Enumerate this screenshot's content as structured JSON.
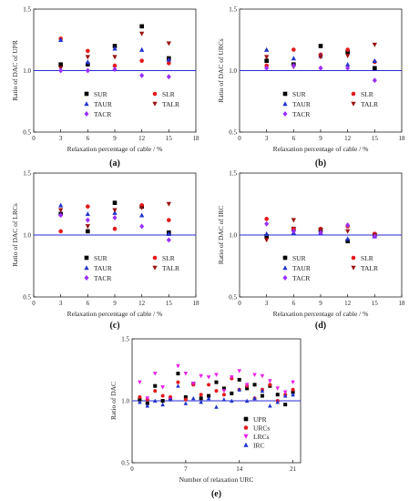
{
  "chart_data": [
    {
      "type": "scatter",
      "panel": "(a)",
      "xlabel": "Relaxation percentage of cable / %",
      "ylabel": "Ratio of DAC of UPR",
      "xlim": [
        0,
        18
      ],
      "ylim": [
        0.5,
        1.5
      ],
      "xticks": [
        0,
        3,
        6,
        9,
        12,
        15,
        18
      ],
      "yticks": [
        0.5,
        1.0,
        1.5
      ],
      "reference_line": 1.0,
      "legend_position": "bottom-center",
      "x": [
        3,
        6,
        9,
        12,
        15
      ],
      "series": [
        {
          "name": "SUR",
          "color": "#000000",
          "marker": "square",
          "values": [
            1.05,
            1.05,
            1.2,
            1.36,
            1.1
          ]
        },
        {
          "name": "SLR",
          "color": "#e41a1c",
          "marker": "circle",
          "values": [
            1.26,
            1.16,
            1.04,
            1.08,
            1.06
          ]
        },
        {
          "name": "TAUR",
          "color": "#2233cc",
          "marker": "triangle",
          "values": [
            1.25,
            1.07,
            1.18,
            1.17,
            1.09
          ]
        },
        {
          "name": "TALR",
          "color": "#991111",
          "marker": "invtri",
          "values": [
            1.02,
            1.11,
            1.11,
            1.3,
            1.22
          ]
        },
        {
          "name": "TACR",
          "color": "#9b30ff",
          "marker": "diamond",
          "values": [
            1.0,
            1.0,
            1.01,
            0.96,
            0.95
          ]
        }
      ]
    },
    {
      "type": "scatter",
      "panel": "(b)",
      "xlabel": "Relaxation percentage of cable / %",
      "ylabel": "Ratio of DAC of URCs",
      "xlim": [
        0,
        18
      ],
      "ylim": [
        0.5,
        1.5
      ],
      "xticks": [
        0,
        3,
        6,
        9,
        12,
        15,
        18
      ],
      "yticks": [
        0.5,
        1.0,
        1.5
      ],
      "reference_line": 1.0,
      "legend_position": "bottom-center",
      "x": [
        3,
        6,
        9,
        12,
        15
      ],
      "series": [
        {
          "name": "SUR",
          "color": "#000000",
          "marker": "square",
          "values": [
            1.08,
            1.05,
            1.2,
            1.15,
            1.02
          ]
        },
        {
          "name": "SLR",
          "color": "#e41a1c",
          "marker": "circle",
          "values": [
            1.04,
            1.17,
            1.13,
            1.17,
            1.07
          ]
        },
        {
          "name": "TAUR",
          "color": "#2233cc",
          "marker": "triangle",
          "values": [
            1.17,
            1.1,
            1.12,
            1.05,
            1.08
          ]
        },
        {
          "name": "TALR",
          "color": "#991111",
          "marker": "invtri",
          "values": [
            1.11,
            1.03,
            1.11,
            1.12,
            1.21
          ]
        },
        {
          "name": "TACR",
          "color": "#9b30ff",
          "marker": "diamond",
          "values": [
            1.02,
            1.04,
            1.02,
            1.02,
            0.92
          ]
        }
      ]
    },
    {
      "type": "scatter",
      "panel": "(c)",
      "xlabel": "Relaxation percentage of cable / %",
      "ylabel": "Ratio of DAC of LRCs",
      "xlim": [
        0,
        18
      ],
      "ylim": [
        0.5,
        1.5
      ],
      "xticks": [
        0,
        3,
        6,
        9,
        12,
        15,
        18
      ],
      "yticks": [
        0.5,
        1.0,
        1.5
      ],
      "reference_line": 1.0,
      "legend_position": "bottom-center",
      "x": [
        3,
        6,
        9,
        12,
        15
      ],
      "series": [
        {
          "name": "SUR",
          "color": "#000000",
          "marker": "square",
          "values": [
            1.17,
            1.03,
            1.26,
            1.23,
            1.02
          ]
        },
        {
          "name": "SLR",
          "color": "#e41a1c",
          "marker": "circle",
          "values": [
            1.03,
            1.23,
            1.05,
            1.24,
            1.12
          ]
        },
        {
          "name": "TAUR",
          "color": "#2233cc",
          "marker": "triangle",
          "values": [
            1.24,
            1.17,
            1.18,
            1.16,
            1.01
          ]
        },
        {
          "name": "TALR",
          "color": "#991111",
          "marker": "invtri",
          "values": [
            1.2,
            1.07,
            1.2,
            1.22,
            1.25
          ]
        },
        {
          "name": "TACR",
          "color": "#9b30ff",
          "marker": "diamond",
          "values": [
            1.16,
            1.12,
            1.14,
            1.07,
            0.96
          ]
        }
      ]
    },
    {
      "type": "scatter",
      "panel": "(d)",
      "xlabel": "Relaxation percentage of cable / %",
      "ylabel": "Ratio of DAC of IRC",
      "xlim": [
        0,
        18
      ],
      "ylim": [
        0.5,
        1.5
      ],
      "xticks": [
        0,
        3,
        6,
        9,
        12,
        15,
        18
      ],
      "yticks": [
        0.5,
        1.0,
        1.5
      ],
      "reference_line": 1.0,
      "legend_position": "bottom-center",
      "x": [
        3,
        6,
        9,
        12,
        15
      ],
      "series": [
        {
          "name": "SUR",
          "color": "#000000",
          "marker": "square",
          "values": [
            0.99,
            1.05,
            1.04,
            0.95,
            1.0
          ]
        },
        {
          "name": "SLR",
          "color": "#e41a1c",
          "marker": "circle",
          "values": [
            1.13,
            1.05,
            1.05,
            1.07,
            1.01
          ]
        },
        {
          "name": "TAUR",
          "color": "#2233cc",
          "marker": "triangle",
          "values": [
            1.01,
            1.02,
            1.02,
            0.97,
            0.99
          ]
        },
        {
          "name": "TALR",
          "color": "#991111",
          "marker": "invtri",
          "values": [
            0.96,
            1.12,
            1.04,
            1.03,
            1.0
          ]
        },
        {
          "name": "TACR",
          "color": "#9b30ff",
          "marker": "diamond",
          "values": [
            1.09,
            1.03,
            1.02,
            1.08,
            0.99
          ]
        }
      ]
    },
    {
      "type": "scatter",
      "panel": "(e)",
      "xlabel": "Number of relaxation URC",
      "ylabel": "Ratio of DAC",
      "xlim": [
        0,
        22
      ],
      "ylim": [
        0.5,
        1.5
      ],
      "xticks": [
        0,
        7,
        14,
        21
      ],
      "yticks": [
        0.5,
        1.0,
        1.5
      ],
      "reference_line": 1.0,
      "legend_position": "bottom-right",
      "x": [
        1,
        2,
        3,
        4,
        5,
        6,
        7,
        8,
        9,
        10,
        11,
        12,
        13,
        14,
        15,
        16,
        17,
        18,
        19,
        20,
        21
      ],
      "series": [
        {
          "name": "UPR",
          "color": "#000000",
          "marker": "square",
          "values": [
            1.01,
            0.98,
            1.12,
            1.0,
            1.02,
            1.22,
            1.03,
            1.14,
            1.02,
            1.04,
            1.15,
            1.1,
            1.06,
            1.17,
            1.1,
            1.13,
            1.04,
            1.12,
            1.05,
            0.97,
            1.07
          ]
        },
        {
          "name": "URCs",
          "color": "#e41a1c",
          "marker": "circle",
          "values": [
            1.03,
            1.01,
            1.08,
            1.04,
            1.03,
            1.15,
            1.01,
            1.13,
            1.05,
            1.13,
            1.08,
            1.05,
            1.18,
            1.09,
            1.12,
            1.02,
            1.09,
            1.13,
            1.0,
            1.05,
            1.09
          ]
        },
        {
          "name": "LRCs",
          "color": "#e91ee8",
          "marker": "invtri",
          "values": [
            1.15,
            1.02,
            1.22,
            1.11,
            1.01,
            1.28,
            1.22,
            1.14,
            1.2,
            1.19,
            1.21,
            1.08,
            1.19,
            1.24,
            1.13,
            1.21,
            1.2,
            1.16,
            1.1,
            1.07,
            1.15
          ]
        },
        {
          "name": "IRC",
          "color": "#2233cc",
          "marker": "triangle",
          "values": [
            0.99,
            0.96,
            1.0,
            0.97,
            1.01,
            1.12,
            0.98,
            1.02,
            0.99,
            1.02,
            0.95,
            1.01,
            1.0,
            1.09,
            1.0,
            1.02,
            1.08,
            0.96,
            0.99,
            1.04,
            1.05
          ]
        }
      ]
    }
  ],
  "colors": {
    "reference_line": "#2a2ad8",
    "axis": "#222222"
  }
}
